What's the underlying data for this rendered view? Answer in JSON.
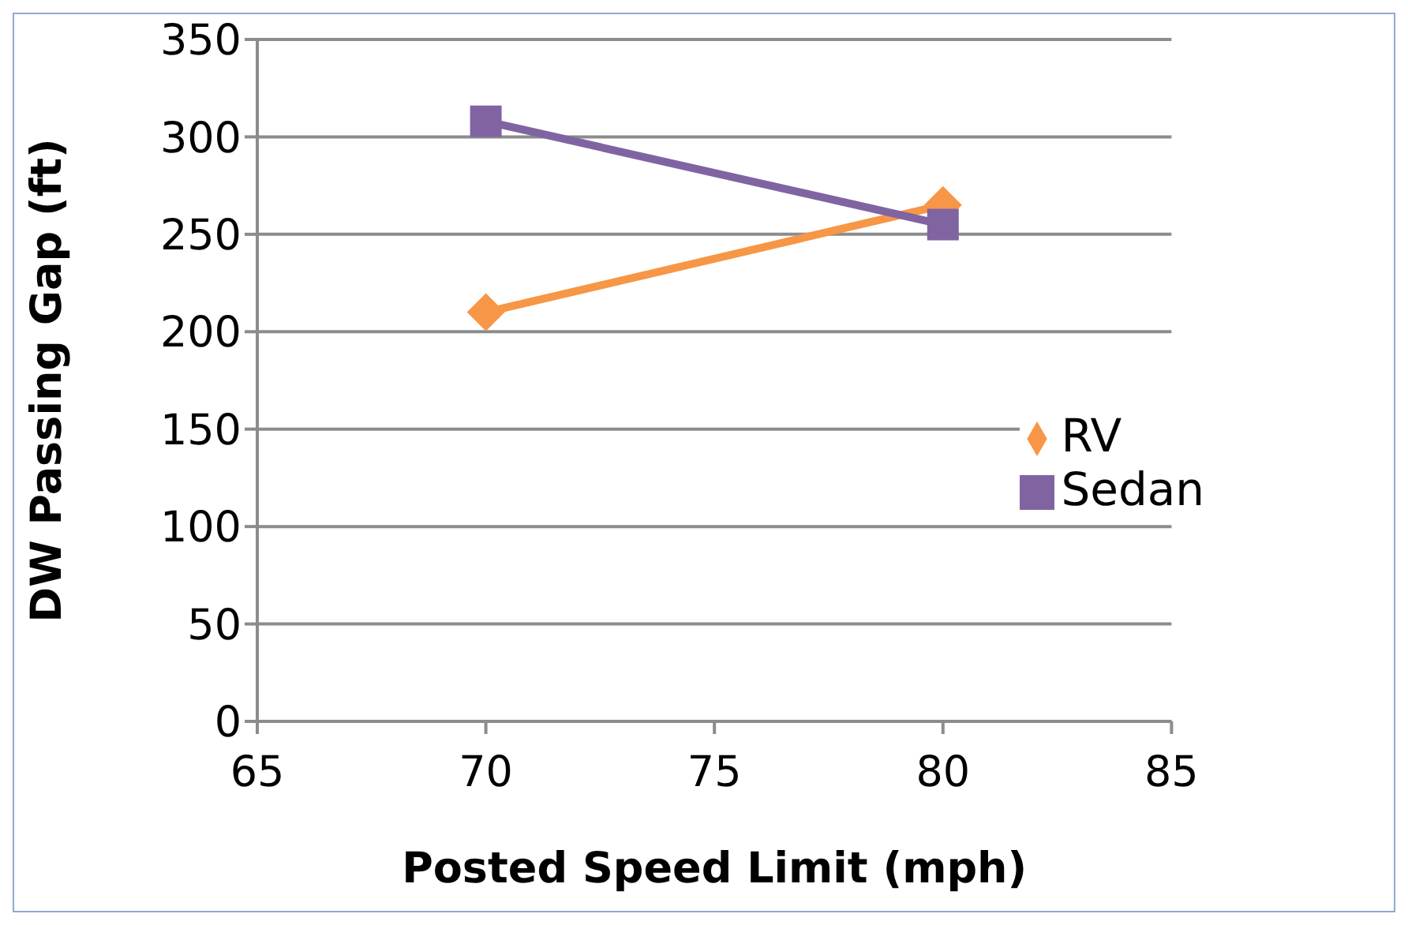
{
  "chart_data": {
    "type": "line",
    "xlabel": "Posted Speed Limit (mph)",
    "ylabel": "DW Passing Gap (ft)",
    "x": [
      70,
      80
    ],
    "series": [
      {
        "name": "RV",
        "color": "#f79646",
        "values": [
          210,
          265
        ],
        "marker": "diamond"
      },
      {
        "name": "Sedan",
        "color": "#8064a2",
        "values": [
          308,
          255
        ],
        "marker": "square"
      }
    ],
    "xlim": [
      65,
      85
    ],
    "xticks": [
      65,
      70,
      75,
      80,
      85
    ],
    "ylim": [
      0,
      350
    ],
    "yticks": [
      0,
      50,
      100,
      150,
      200,
      250,
      300,
      350
    ],
    "grid": "y",
    "legend": "right",
    "line_style": "solid"
  }
}
